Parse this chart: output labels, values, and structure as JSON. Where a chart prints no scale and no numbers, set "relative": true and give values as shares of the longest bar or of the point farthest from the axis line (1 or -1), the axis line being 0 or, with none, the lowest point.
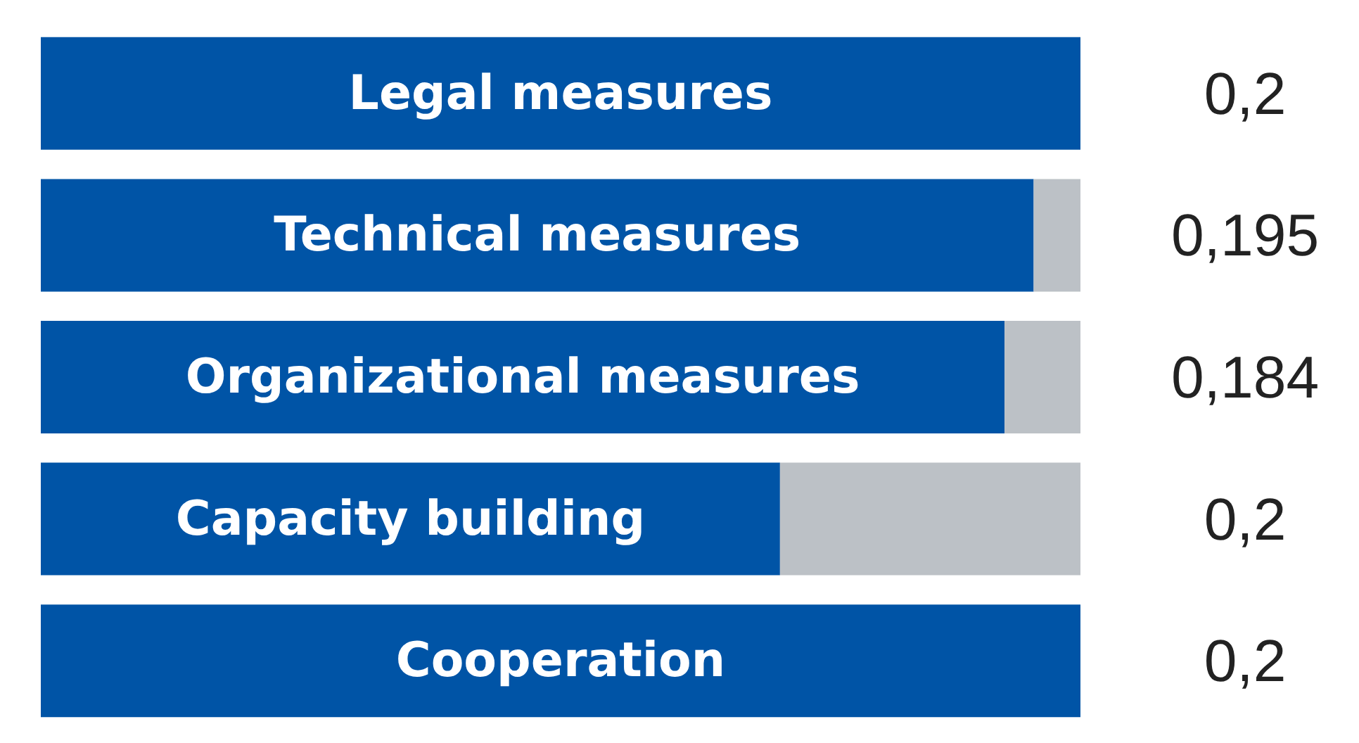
{
  "chart_data": {
    "type": "bar",
    "orientation": "horizontal",
    "stacked": true,
    "relative": true,
    "categories": [
      "Legal measures",
      "Technical measures",
      "Organizational measures",
      "Capacity building",
      "Cooperation"
    ],
    "series": [
      {
        "color": "#0054a6",
        "values": [
          1,
          0.955,
          0.927,
          0.711,
          1
        ]
      },
      {
        "color": "#bcc1c6",
        "values": [
          0,
          0.045,
          0.073,
          0.289,
          0
        ]
      }
    ],
    "annotations": [
      "0,2",
      "0,195",
      "0,184",
      "0,2",
      "0,2"
    ]
  }
}
